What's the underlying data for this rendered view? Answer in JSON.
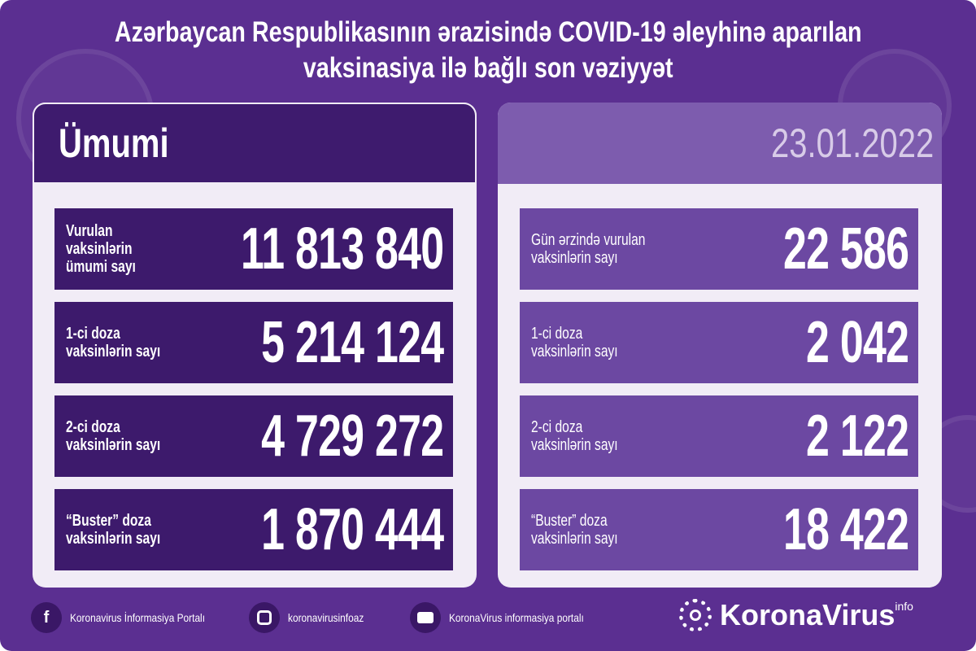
{
  "header": {
    "title_line1": "Azərbaycan Respublikasının ərazisində COVID-19 əleyhinə aparılan",
    "title_line2": "vaksinasiya ilə bağlı son vəziyyət"
  },
  "left": {
    "heading": "Ümumi",
    "rows": [
      {
        "label": "Vurulan vaksinlərin\nümumi sayı",
        "value": "11 813 840"
      },
      {
        "label": "1-ci doza\nvaksinlərin sayı",
        "value": "5 214 124"
      },
      {
        "label": "2-ci doza\nvaksinlərin sayı",
        "value": "4 729 272"
      },
      {
        "label": "“Buster” doza\nvaksinlərin sayı",
        "value": "1 870 444"
      }
    ]
  },
  "right": {
    "date": "23.01.2022",
    "rows": [
      {
        "label": "Gün ərzində vurulan\nvaksinlərin sayı",
        "value": "22 586"
      },
      {
        "label": "1-ci doza\nvaksinlərin sayı",
        "value": "2 042"
      },
      {
        "label": "2-ci doza\nvaksinlərin sayı",
        "value": "2 122"
      },
      {
        "label": "“Buster” doza\nvaksinlərin sayı",
        "value": "18 422"
      }
    ]
  },
  "footer": {
    "facebook": "Koronavirus İnformasiya Portalı",
    "instagram": "koronavirusinfoaz",
    "youtube": "KoronaVirus informasiya portalı",
    "brand": "KoronaVirus",
    "brand_sup": "info"
  },
  "colors": {
    "background": "#5b2f91",
    "left_rows": "#3d1a6c",
    "right_rows": "#6c48a2",
    "panel": "#f1ecf6"
  }
}
